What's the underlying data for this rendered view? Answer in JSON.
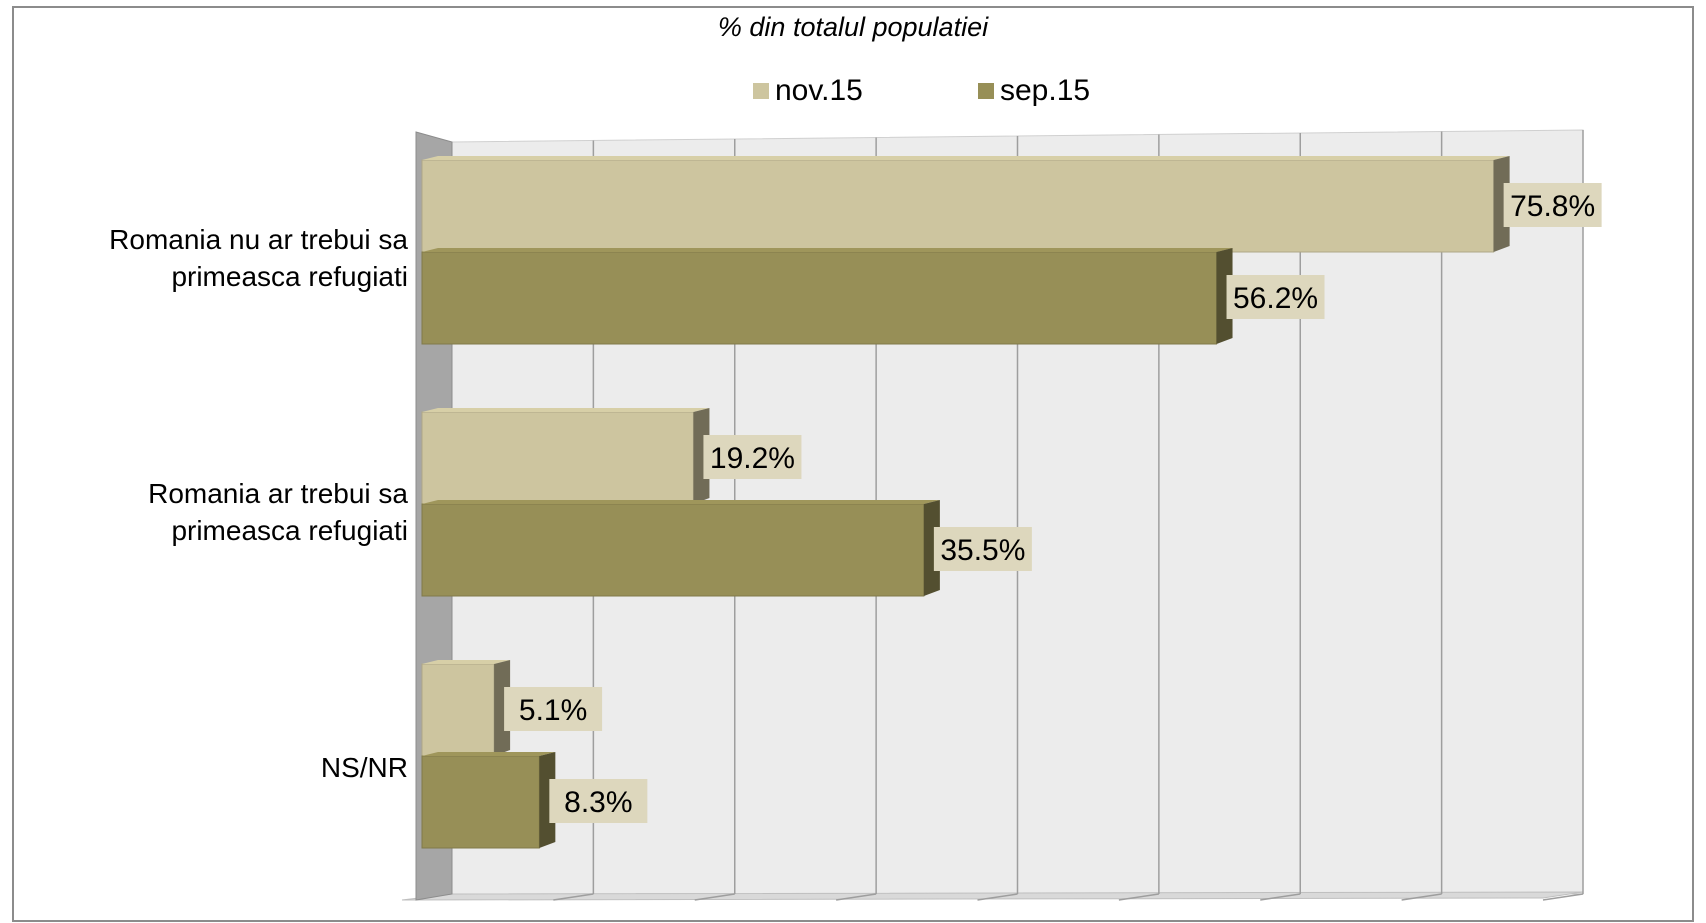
{
  "chart_data": {
    "type": "bar",
    "orientation": "horizontal",
    "title": "% din totalul populatiei",
    "categories": [
      "Romania nu ar trebui sa primeasca refugiati",
      "Romania ar trebui sa primeasca refugiati",
      "NS/NR"
    ],
    "category_lines": [
      [
        "Romania nu ar trebui sa",
        "primeasca refugiati"
      ],
      [
        "Romania ar trebui sa",
        "primeasca refugiati"
      ],
      [
        "NS/NR"
      ]
    ],
    "series": [
      {
        "name": "nov.15",
        "values": [
          75.8,
          19.2,
          5.1
        ],
        "labels": [
          "75.8%",
          "19.2%",
          "5.1%"
        ],
        "color": "#cdc59f"
      },
      {
        "name": "sep.15",
        "values": [
          56.2,
          35.5,
          8.3
        ],
        "labels": [
          "56.2%",
          "35.5%",
          "8.3%"
        ],
        "color": "#978f57"
      }
    ],
    "xlim": [
      0,
      80
    ],
    "grid": true,
    "legend_position": "top"
  },
  "colors": {
    "nov_bar": "#cdc59f",
    "sep_bar": "#978f57",
    "label_bg": "#ddd7bd",
    "wall": "#a6a6a6"
  }
}
